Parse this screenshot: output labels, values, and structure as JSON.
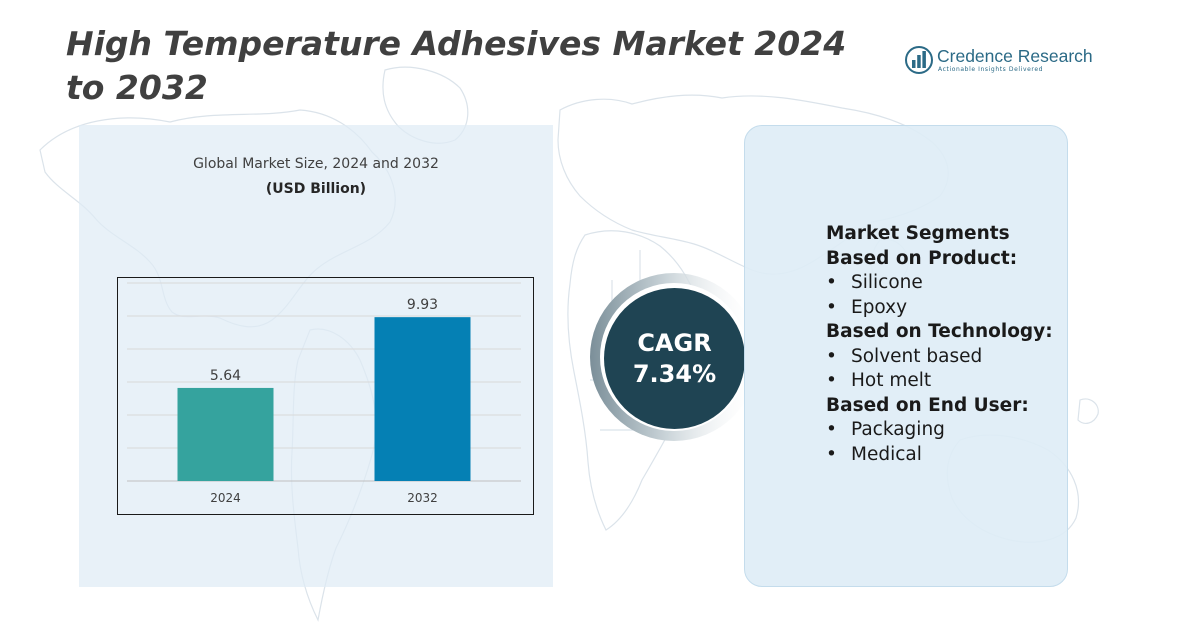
{
  "title": "High Temperature Adhesives Market 2024 to 2032",
  "logo": {
    "name": "Credence Research",
    "tagline": "Actionable Insights Delivered",
    "icon": "bar-chart-logo-icon"
  },
  "colors": {
    "title": "#404040",
    "bar_2024": "#35a39e",
    "bar_2032": "#0580b4",
    "cagr_circle": "#1f4453",
    "panel": "#deecf6"
  },
  "chart_data": {
    "type": "bar",
    "title": "Global Market Size, 2024 and 2032",
    "subtitle": "(USD Billion)",
    "categories": [
      "2024",
      "2032"
    ],
    "values": [
      5.64,
      9.93
    ],
    "data_labels": [
      "5.64",
      "9.93"
    ],
    "ylim": [
      0,
      12
    ],
    "grid": true,
    "xlabel": "",
    "ylabel": ""
  },
  "cagr": {
    "label": "CAGR",
    "value": "7.34%"
  },
  "segments": {
    "heading": "Market Segments",
    "groups": [
      {
        "title": "Based on Product:",
        "items": [
          "Silicone",
          "Epoxy"
        ]
      },
      {
        "title": "Based on Technology:",
        "items": [
          "Solvent based",
          "Hot melt"
        ]
      },
      {
        "title": "Based on End User:",
        "items": [
          "Packaging",
          "Medical"
        ]
      }
    ],
    "bullet": "•"
  }
}
